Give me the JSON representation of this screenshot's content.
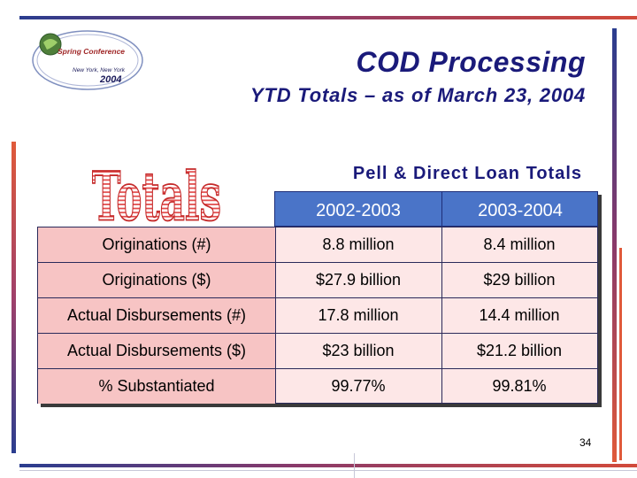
{
  "logo": {
    "line1": "Spring Conference",
    "line2": "New York, New York",
    "line3": "2004"
  },
  "title": "COD Processing",
  "subtitle": "YTD Totals – as of March 23, 2004",
  "graphic_word": "Totals",
  "section_heading": "Pell & Direct Loan Totals",
  "table": {
    "columns": [
      "2002-2003",
      "2003-2004"
    ],
    "rows": [
      {
        "label": "Originations (#)",
        "values": [
          "8.8 million",
          "8.4 million"
        ]
      },
      {
        "label": "Originations ($)",
        "values": [
          "$27.9 billion",
          "$29 billion"
        ]
      },
      {
        "label": "Actual Disbursements (#)",
        "values": [
          "17.8 million",
          "14.4 million"
        ]
      },
      {
        "label": "Actual Disbursements ($)",
        "values": [
          "$23 billion",
          "$21.2 billion"
        ]
      },
      {
        "label": "% Substantiated",
        "values": [
          "99.77%",
          "99.81%"
        ]
      }
    ]
  },
  "page_number": "34",
  "colors": {
    "title": "#1a1a7a",
    "header_fill": "#4a74c8",
    "label_fill": "#f7c4c4",
    "body_fill": "#fde7e7",
    "accent_red": "#d24a3a"
  }
}
